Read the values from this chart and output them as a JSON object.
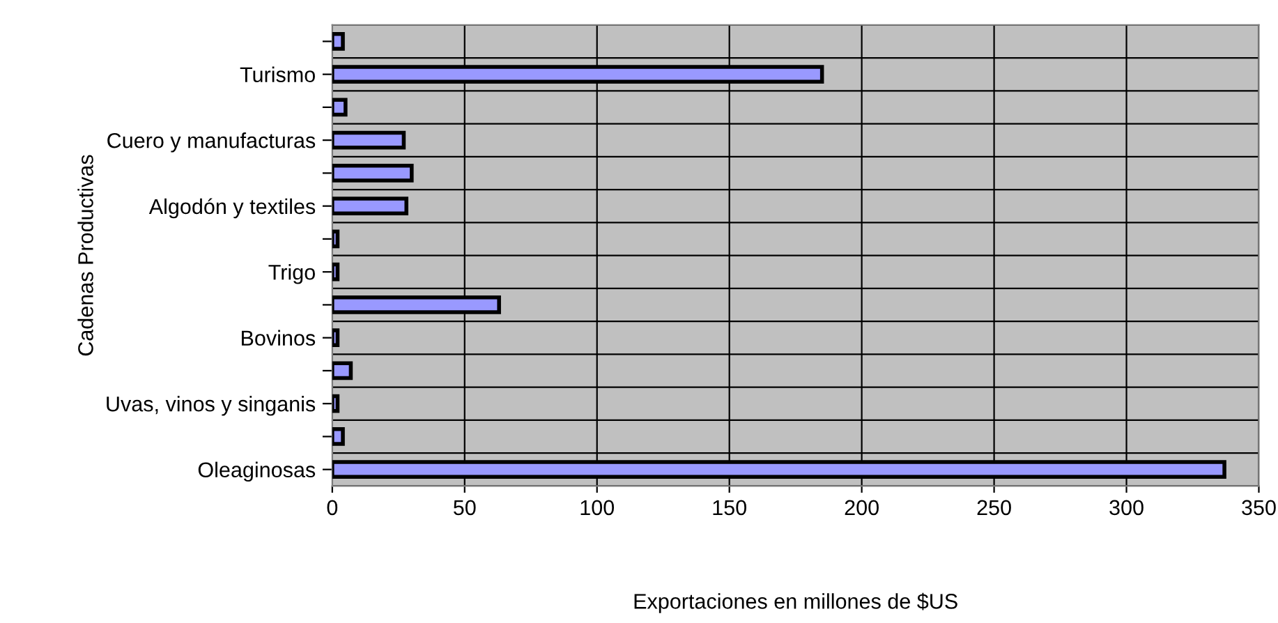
{
  "chart_data": {
    "type": "bar",
    "orientation": "horizontal",
    "xlabel": "Exportaciones en millones de $US",
    "ylabel": "Cadenas Productivas",
    "categories": [
      null,
      "Turismo",
      null,
      "Cuero y manufacturas",
      null,
      "Algodón y textiles",
      null,
      "Trigo",
      null,
      "Bovinos",
      null,
      "Uvas, vinos y singanis",
      null,
      "Oleaginosas"
    ],
    "values": [
      4,
      185,
      5,
      27,
      30,
      28,
      2,
      2,
      63,
      2,
      7,
      2,
      4,
      337
    ],
    "color": "#9999ff",
    "xlim": [
      0,
      350
    ],
    "xticks": [
      0,
      50,
      100,
      150,
      200,
      250,
      300,
      350
    ],
    "grid": true,
    "legend": false
  }
}
